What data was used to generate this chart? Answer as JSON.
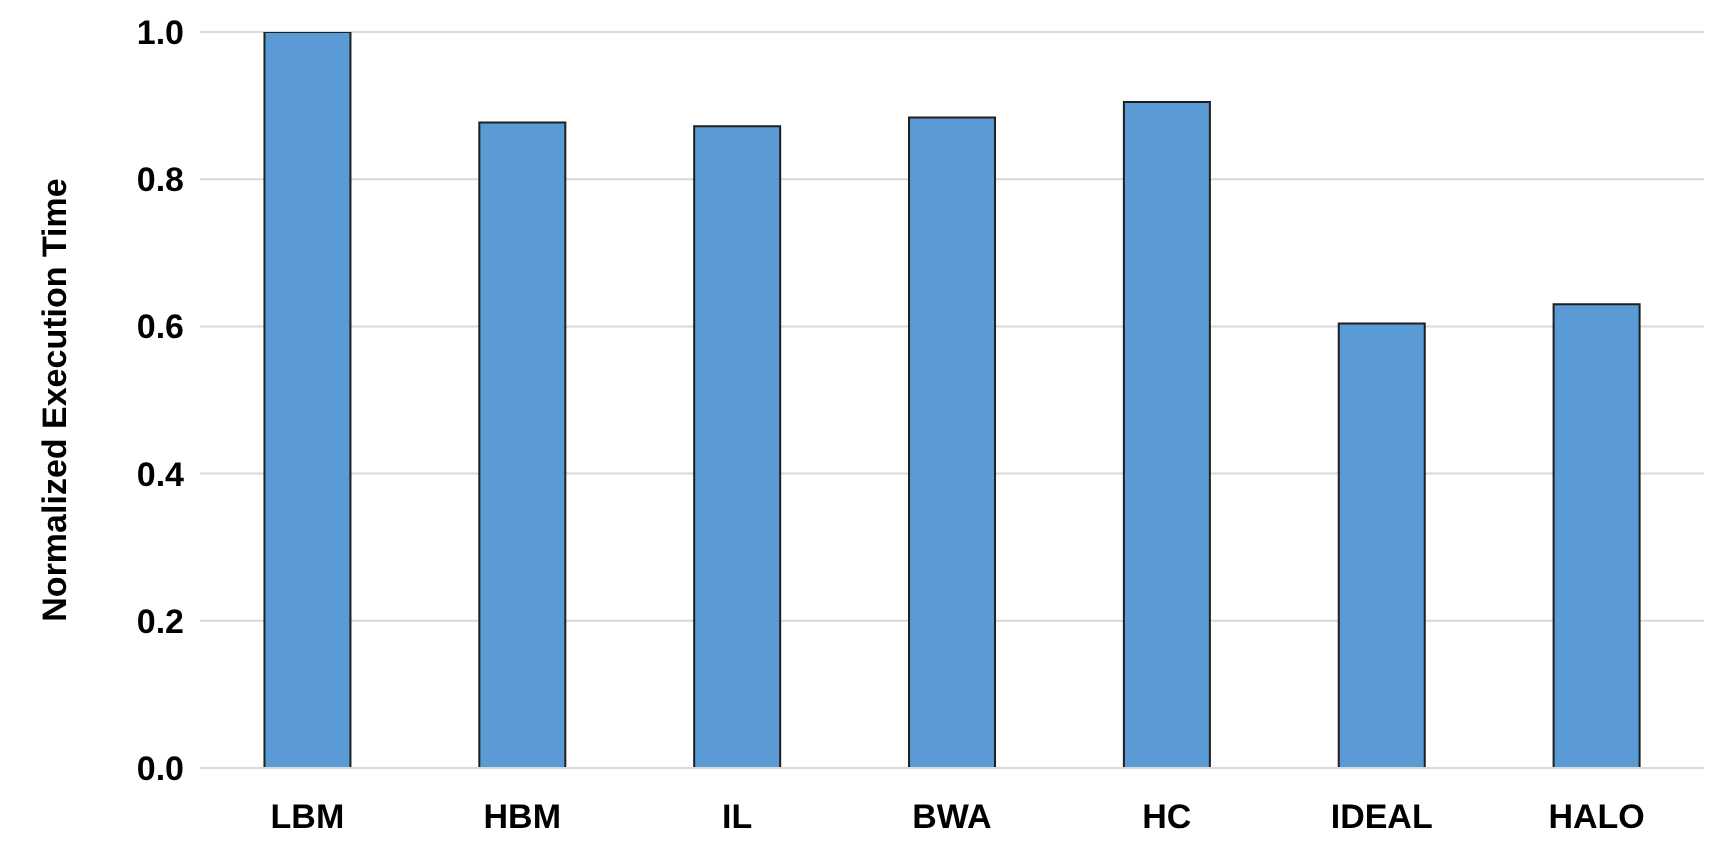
{
  "chart_data": {
    "type": "bar",
    "ylabel": "Normalized Execution Time",
    "categories": [
      "LBM",
      "HBM",
      "IL",
      "BWA",
      "HC",
      "IDEAL",
      "HALO"
    ],
    "values": [
      1.0,
      0.877,
      0.872,
      0.884,
      0.905,
      0.604,
      0.63
    ],
    "color": "#5b9bd5",
    "ylim": [
      0,
      1.0
    ],
    "yticks": [
      {
        "value": 0,
        "label": "0.0"
      },
      {
        "value": 0.2,
        "label": "0.2"
      },
      {
        "value": 0.4,
        "label": "0.4"
      },
      {
        "value": 0.6,
        "label": "0.6"
      },
      {
        "value": 0.8,
        "label": "0.8"
      },
      {
        "value": 1.0,
        "label": "1.0"
      }
    ],
    "grid": "y"
  }
}
